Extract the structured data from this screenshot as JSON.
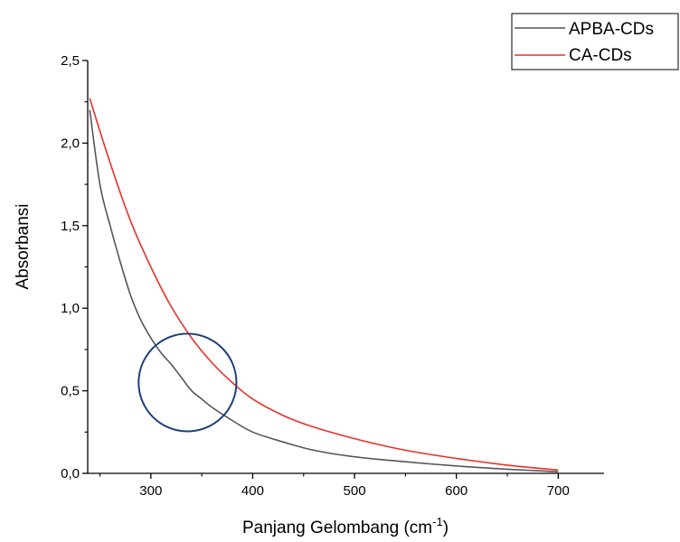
{
  "chart_data": {
    "type": "line",
    "xlabel_main": "Panjang Gelombang (cm",
    "xlabel_sup": "-1",
    "xlabel_end": ")",
    "ylabel": "Absorbansi",
    "xlim": [
      238,
      745
    ],
    "ylim": [
      0,
      2.5
    ],
    "xticks": [
      300,
      400,
      500,
      600,
      700
    ],
    "xtick_labels": [
      "300",
      "400",
      "500",
      "600",
      "700"
    ],
    "yticks": [
      0,
      0.5,
      1.0,
      1.5,
      2.0,
      2.5
    ],
    "ytick_labels": [
      "0,0",
      "0,5",
      "1,0",
      "1,5",
      "2,0",
      "2,5"
    ],
    "legend_position": "top-right",
    "series": [
      {
        "name": "APBA-CDs",
        "color": "#555555",
        "x": [
          240,
          250,
          260,
          270,
          280,
          290,
          300,
          310,
          320,
          330,
          340,
          350,
          360,
          380,
          400,
          430,
          460,
          500,
          550,
          600,
          650,
          700
        ],
        "y": [
          2.2,
          1.75,
          1.5,
          1.28,
          1.08,
          0.93,
          0.82,
          0.73,
          0.66,
          0.58,
          0.5,
          0.45,
          0.4,
          0.32,
          0.25,
          0.19,
          0.14,
          0.1,
          0.07,
          0.045,
          0.025,
          0.01
        ]
      },
      {
        "name": "CA-CDs",
        "color": "#e8302a",
        "x": [
          240,
          260,
          280,
          300,
          320,
          340,
          360,
          380,
          400,
          430,
          460,
          500,
          550,
          600,
          650,
          700
        ],
        "y": [
          2.27,
          1.88,
          1.53,
          1.25,
          1.01,
          0.82,
          0.67,
          0.55,
          0.45,
          0.35,
          0.28,
          0.21,
          0.14,
          0.09,
          0.05,
          0.02
        ]
      }
    ],
    "annotation": {
      "shape": "circle",
      "color": "#1f3f7a",
      "center_x": 336,
      "center_y": 0.55,
      "radius_x": 48
    }
  }
}
